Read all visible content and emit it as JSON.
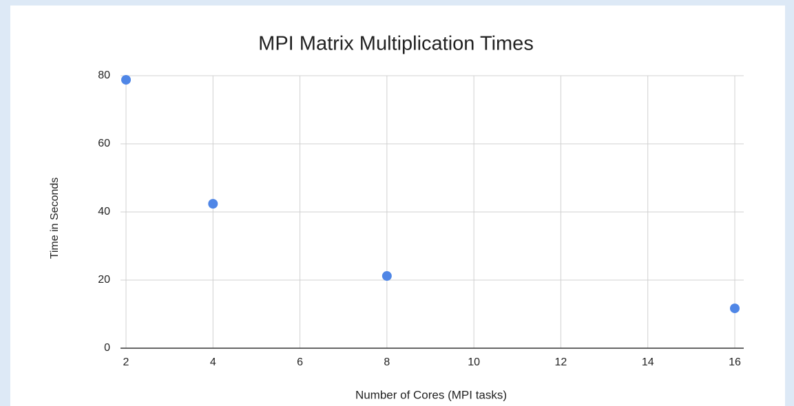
{
  "chart_data": {
    "type": "scatter",
    "title": "MPI Matrix Multiplication Times",
    "x_label": "Number of Cores (MPI tasks)",
    "y_label": "Time in Seconds",
    "x": [
      2,
      4,
      8,
      16
    ],
    "values": [
      78.8,
      42.4,
      21.2,
      11.7
    ],
    "color": "#4f86e6",
    "xlim": [
      2,
      16
    ],
    "xticks": [
      2,
      4,
      6,
      8,
      10,
      12,
      14,
      16
    ],
    "ylim": [
      0,
      80
    ],
    "yticks": [
      0,
      20,
      40,
      60,
      80
    ],
    "grid": true
  }
}
